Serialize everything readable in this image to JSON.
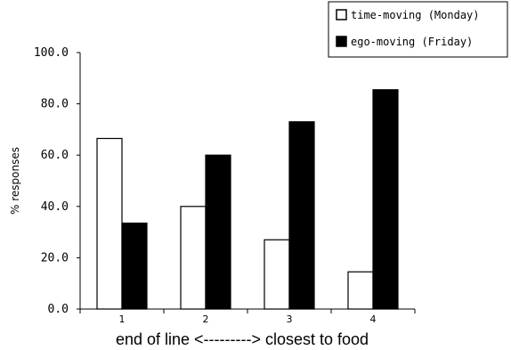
{
  "chart_data": {
    "type": "bar",
    "categories": [
      "1",
      "2",
      "3",
      "4"
    ],
    "series": [
      {
        "name": "time-moving (Monday)",
        "fill": "#ffffff",
        "values": [
          66.5,
          40.0,
          27.0,
          14.5
        ]
      },
      {
        "name": "ego-moving (Friday)",
        "fill": "#000000",
        "values": [
          33.5,
          60.0,
          73.0,
          85.5
        ]
      }
    ],
    "xlabel": "end of line <---------> closest to food",
    "ylabel": "% responses",
    "ylim": [
      0,
      100
    ],
    "yticks": [
      "0.0",
      "20.0",
      "40.0",
      "60.0",
      "80.0",
      "100.0"
    ],
    "legend_position": "top-right",
    "grid": false
  }
}
